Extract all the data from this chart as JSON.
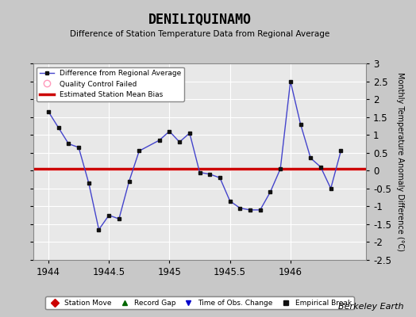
{
  "title": "DENILIQUINAMO",
  "subtitle": "Difference of Station Temperature Data from Regional Average",
  "ylabel": "Monthly Temperature Anomaly Difference (°C)",
  "bias": 0.05,
  "xlim": [
    1943.875,
    1946.625
  ],
  "ylim": [
    -2.5,
    3.0
  ],
  "yticks": [
    -2.5,
    -2,
    -1.5,
    -1,
    -0.5,
    0,
    0.5,
    1,
    1.5,
    2,
    2.5,
    3
  ],
  "xticks": [
    1944,
    1944.5,
    1945,
    1945.5,
    1946
  ],
  "background_color": "#c8c8c8",
  "plot_bg_color": "#e8e8e8",
  "line_color": "#4444cc",
  "bias_color": "#cc0000",
  "marker_color": "#111111",
  "x_data": [
    1944.0,
    1944.0833,
    1944.1667,
    1944.25,
    1944.3333,
    1944.4167,
    1944.5,
    1944.5833,
    1944.6667,
    1944.75,
    1944.9167,
    1945.0,
    1945.0833,
    1945.1667,
    1945.25,
    1945.3333,
    1945.4167,
    1945.5,
    1945.5833,
    1945.6667,
    1945.75,
    1945.8333,
    1945.9167,
    1946.0,
    1946.0833,
    1946.1667,
    1946.25,
    1946.3333,
    1946.4167
  ],
  "y_data": [
    1.65,
    1.2,
    0.75,
    0.65,
    -0.35,
    -1.65,
    -1.25,
    -1.35,
    -0.3,
    0.55,
    0.85,
    1.1,
    0.8,
    1.05,
    -0.05,
    -0.1,
    -0.2,
    -0.85,
    -1.05,
    -1.1,
    -1.1,
    -0.6,
    0.05,
    2.5,
    1.3,
    0.35,
    0.1,
    -0.5,
    0.55
  ],
  "watermark": "Berkeley Earth",
  "legend_line_label": "Difference from Regional Average",
  "legend_qc_label": "Quality Control Failed",
  "legend_bias_label": "Estimated Station Mean Bias",
  "legend2_station_label": "Station Move",
  "legend2_gap_label": "Record Gap",
  "legend2_obs_label": "Time of Obs. Change",
  "legend2_break_label": "Empirical Break"
}
